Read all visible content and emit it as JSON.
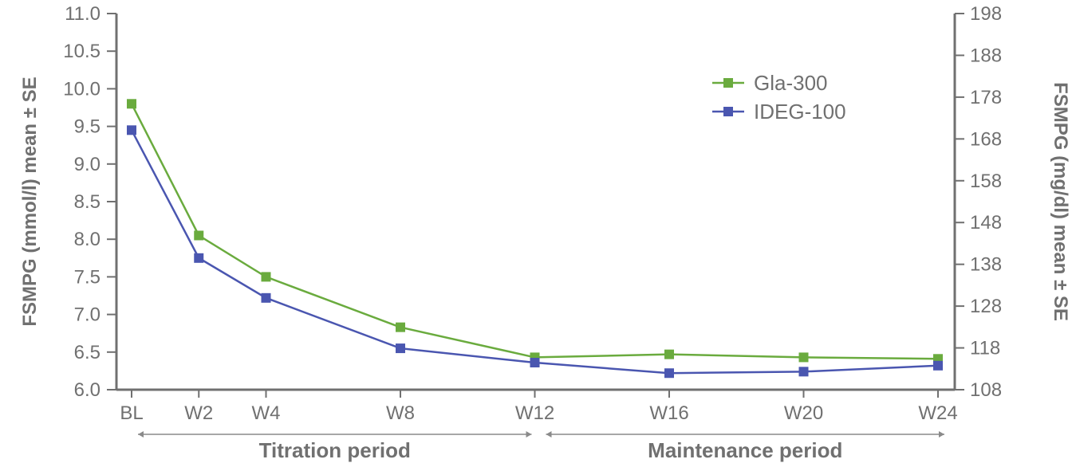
{
  "chart_data": {
    "type": "line",
    "categories": [
      "BL",
      "W2",
      "W4",
      "W8",
      "W12",
      "W16",
      "W20",
      "W24"
    ],
    "x_weeks": [
      0,
      2,
      4,
      8,
      12,
      16,
      20,
      24
    ],
    "series": [
      {
        "name": "Gla-300",
        "color": "#6aab3e",
        "values": [
          9.8,
          8.05,
          7.5,
          6.83,
          6.43,
          6.47,
          6.43,
          6.41
        ]
      },
      {
        "name": "IDEG-100",
        "color": "#4a56b0",
        "values": [
          9.45,
          7.75,
          7.22,
          6.55,
          6.36,
          6.22,
          6.24,
          6.32
        ]
      }
    ],
    "y_left": {
      "label": "FSMPG (mmol/l) mean ± SE",
      "ylim": [
        6.0,
        11.0
      ],
      "ticks": [
        "6.0",
        "6.5",
        "7.0",
        "7.5",
        "8.0",
        "8.5",
        "9.0",
        "9.5",
        "10.0",
        "10.5",
        "11.0"
      ]
    },
    "y_right": {
      "label": "FSMPG (mg/dl) mean ± SE",
      "ylim": [
        108,
        198
      ],
      "ticks": [
        "108",
        "118",
        "128",
        "138",
        "148",
        "158",
        "168",
        "178",
        "188",
        "198"
      ]
    },
    "periods": [
      {
        "label": "Titration period",
        "from": "BL",
        "to": "W12"
      },
      {
        "label": "Maintenance period",
        "from": "W12",
        "to": "W24"
      }
    ],
    "legend_position": "top-right",
    "grid": false
  }
}
